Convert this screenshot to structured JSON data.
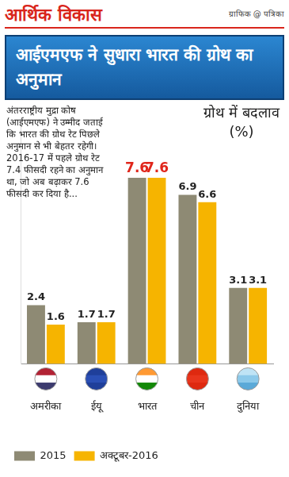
{
  "page": {
    "section": "आर्थिक विकास",
    "credit": "ग्राफिक @ पत्रिका"
  },
  "chart_data": {
    "type": "bar",
    "title": "आईएमएफ ने सुधारा भारत की ग्रोथ का अनुमान",
    "subtitle": "अंतरराष्ट्रीय मुद्रा कोष (आईएमएफ) ने उम्मीद जताई कि भारत की ग्रोथ रेट पिछले अनुमान से भी बेहतर रहेगी। 2016-17 में पहले ग्रोथ रेट 7.4 फीसदी रहने का अनुमान था, जो अब बढ़ाकर 7.6 फीसदी कर दिया है...",
    "y_label": "ग्रोथ में बदलाव (%)",
    "categories": [
      "अमरीका",
      "ईयू",
      "भारत",
      "चीन",
      "दुनिया"
    ],
    "series": [
      {
        "name": "2015",
        "color": "#8e8a74",
        "values": [
          2.4,
          1.7,
          7.6,
          6.9,
          3.1
        ]
      },
      {
        "name": "अक्टूबर-2016",
        "color": "#f6b400",
        "values": [
          1.6,
          1.7,
          7.6,
          6.6,
          3.1
        ]
      }
    ],
    "ylim": [
      0,
      10
    ],
    "grid": false,
    "legend": "bottom",
    "data_labels": true,
    "tick_labels": "x"
  }
}
